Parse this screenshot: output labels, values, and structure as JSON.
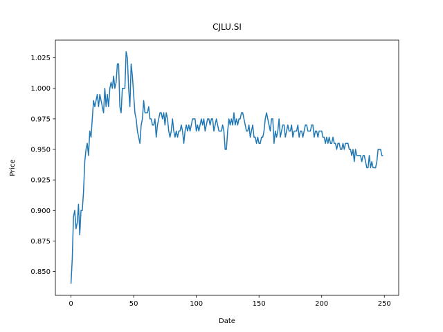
{
  "chart_data": {
    "type": "line",
    "title": "CJLU.SI",
    "x_label": "Date",
    "y_label": "Price",
    "x": [
      0,
      1,
      2,
      3,
      4,
      5,
      6,
      7,
      8,
      9,
      10,
      11,
      12,
      13,
      14,
      15,
      16,
      17,
      18,
      19,
      20,
      21,
      22,
      23,
      24,
      25,
      26,
      27,
      28,
      29,
      30,
      31,
      32,
      33,
      34,
      35,
      36,
      37,
      38,
      39,
      40,
      41,
      42,
      43,
      44,
      45,
      46,
      47,
      48,
      49,
      50,
      51,
      52,
      53,
      54,
      55,
      56,
      57,
      58,
      59,
      60,
      61,
      62,
      63,
      64,
      65,
      66,
      67,
      68,
      69,
      70,
      71,
      72,
      73,
      74,
      75,
      76,
      77,
      78,
      79,
      80,
      81,
      82,
      83,
      84,
      85,
      86,
      87,
      88,
      89,
      90,
      91,
      92,
      93,
      94,
      95,
      96,
      97,
      98,
      99,
      100,
      101,
      102,
      103,
      104,
      105,
      106,
      107,
      108,
      109,
      110,
      111,
      112,
      113,
      114,
      115,
      116,
      117,
      118,
      119,
      120,
      121,
      122,
      123,
      124,
      125,
      126,
      127,
      128,
      129,
      130,
      131,
      132,
      133,
      134,
      135,
      136,
      137,
      138,
      139,
      140,
      141,
      142,
      143,
      144,
      145,
      146,
      147,
      148,
      149,
      150,
      151,
      152,
      153,
      154,
      155,
      156,
      157,
      158,
      159,
      160,
      161,
      162,
      163,
      164,
      165,
      166,
      167,
      168,
      169,
      170,
      171,
      172,
      173,
      174,
      175,
      176,
      177,
      178,
      179,
      180,
      181,
      182,
      183,
      184,
      185,
      186,
      187,
      188,
      189,
      190,
      191,
      192,
      193,
      194,
      195,
      196,
      197,
      198,
      199,
      200,
      201,
      202,
      203,
      204,
      205,
      206,
      207,
      208,
      209,
      210,
      211,
      212,
      213,
      214,
      215,
      216,
      217,
      218,
      219,
      220,
      221,
      222,
      223,
      224,
      225,
      226,
      227,
      228,
      229,
      230,
      231,
      232,
      233,
      234,
      235,
      236,
      237,
      238,
      239,
      240,
      241,
      242,
      243,
      244,
      245,
      246,
      247,
      248,
      249
    ],
    "series": [
      {
        "name": "Price",
        "color": "#1f77b4",
        "values": [
          0.84,
          0.86,
          0.895,
          0.9,
          0.885,
          0.89,
          0.905,
          0.88,
          0.9,
          0.9,
          0.915,
          0.94,
          0.95,
          0.955,
          0.945,
          0.965,
          0.96,
          0.975,
          0.99,
          0.985,
          0.99,
          0.995,
          0.985,
          0.995,
          0.99,
          0.985,
          0.98,
          1.0,
          0.985,
          0.995,
          0.985,
          1.0,
          1.005,
          1.0,
          1.01,
          1.0,
          1.005,
          1.02,
          1.02,
          0.985,
          0.98,
          1.0,
          1.0,
          1.0,
          1.03,
          1.025,
          1.0,
          0.985,
          1.02,
          1.01,
          0.995,
          0.98,
          0.975,
          0.965,
          0.96,
          0.955,
          0.97,
          0.975,
          0.99,
          0.98,
          0.98,
          0.98,
          0.985,
          0.975,
          0.975,
          0.97,
          0.97,
          0.975,
          0.96,
          0.97,
          0.975,
          0.98,
          0.98,
          0.975,
          0.98,
          0.97,
          0.98,
          0.975,
          0.965,
          0.96,
          0.965,
          0.975,
          0.965,
          0.96,
          0.965,
          0.96,
          0.965,
          0.965,
          0.97,
          0.965,
          0.955,
          0.965,
          0.97,
          0.965,
          0.97,
          0.965,
          0.97,
          0.975,
          0.975,
          0.975,
          0.965,
          0.97,
          0.965,
          0.97,
          0.975,
          0.97,
          0.975,
          0.965,
          0.97,
          0.975,
          0.975,
          0.97,
          0.975,
          0.975,
          0.965,
          0.97,
          0.975,
          0.97,
          0.965,
          0.965,
          0.965,
          0.97,
          0.965,
          0.95,
          0.95,
          0.965,
          0.975,
          0.97,
          0.975,
          0.97,
          0.98,
          0.97,
          0.975,
          0.97,
          0.975,
          0.975,
          0.98,
          0.98,
          0.975,
          0.97,
          0.965,
          0.965,
          0.97,
          0.96,
          0.965,
          0.97,
          0.96,
          0.96,
          0.955,
          0.96,
          0.955,
          0.955,
          0.96,
          0.96,
          0.965,
          0.975,
          0.98,
          0.975,
          0.97,
          0.965,
          0.975,
          0.975,
          0.955,
          0.965,
          0.96,
          0.965,
          0.975,
          0.96,
          0.965,
          0.97,
          0.97,
          0.96,
          0.965,
          0.97,
          0.965,
          0.965,
          0.97,
          0.96,
          0.965,
          0.965,
          0.965,
          0.97,
          0.96,
          0.965,
          0.965,
          0.96,
          0.965,
          0.97,
          0.97,
          0.965,
          0.965,
          0.965,
          0.97,
          0.97,
          0.96,
          0.965,
          0.965,
          0.96,
          0.965,
          0.965,
          0.965,
          0.96,
          0.96,
          0.955,
          0.96,
          0.955,
          0.96,
          0.955,
          0.955,
          0.96,
          0.955,
          0.955,
          0.95,
          0.955,
          0.955,
          0.95,
          0.95,
          0.955,
          0.95,
          0.955,
          0.955,
          0.955,
          0.95,
          0.95,
          0.945,
          0.95,
          0.94,
          0.95,
          0.945,
          0.945,
          0.945,
          0.945,
          0.94,
          0.945,
          0.945,
          0.94,
          0.935,
          0.935,
          0.945,
          0.935,
          0.94,
          0.935,
          0.935,
          0.935,
          0.94,
          0.95,
          0.95,
          0.95,
          0.945,
          0.945
        ]
      }
    ],
    "xlim": [
      -12.45,
      261.45
    ],
    "xticks": [
      0,
      50,
      100,
      150,
      200,
      250
    ],
    "ylim": [
      0.8305,
      1.0395
    ],
    "yticks": [
      {
        "value": 0.85,
        "label": "0.850"
      },
      {
        "value": 0.875,
        "label": "0.875"
      },
      {
        "value": 0.9,
        "label": "0.900"
      },
      {
        "value": 0.925,
        "label": "0.925"
      },
      {
        "value": 0.95,
        "label": "0.950"
      },
      {
        "value": 0.975,
        "label": "0.975"
      },
      {
        "value": 1.0,
        "label": "1.000"
      },
      {
        "value": 1.025,
        "label": "1.025"
      }
    ],
    "grid": false
  }
}
